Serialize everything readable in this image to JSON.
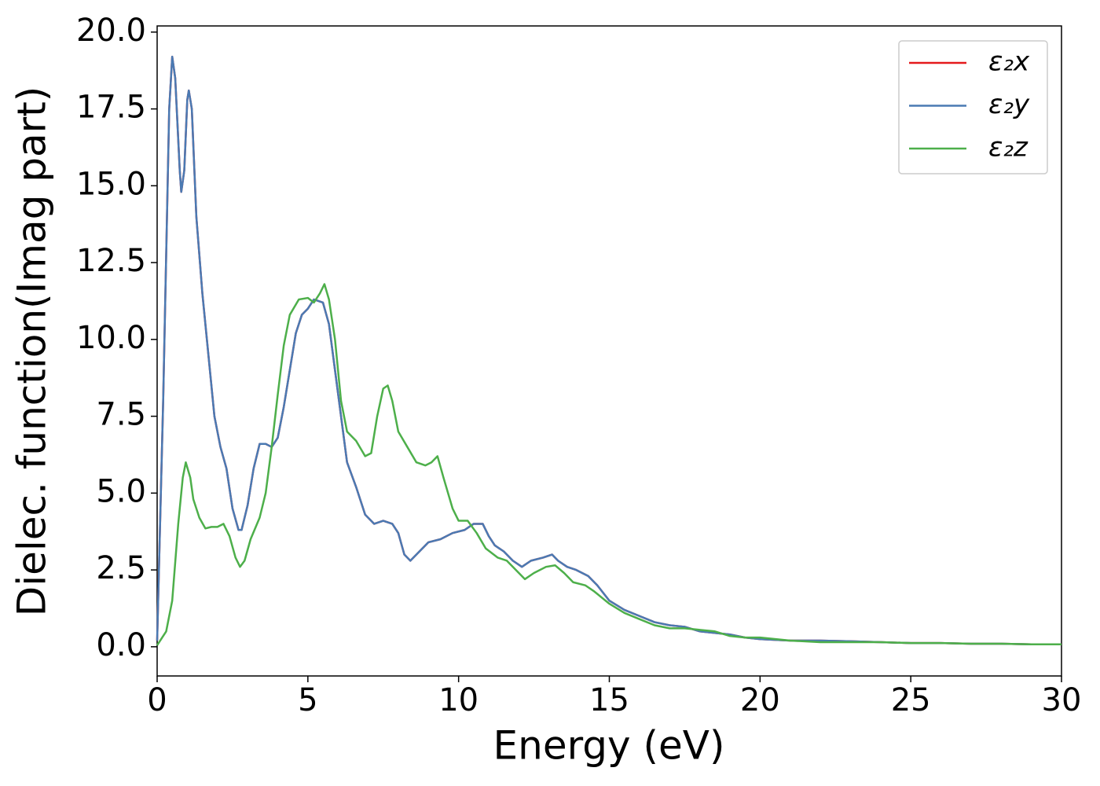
{
  "chart_data": {
    "type": "line",
    "xlabel": "Energy (eV)",
    "ylabel": "Dielec. function(Imag part)",
    "xlim": [
      0,
      30
    ],
    "xticks": [
      0,
      5,
      10,
      15,
      20,
      25,
      30
    ],
    "ylim": [
      -0.95,
      20.2
    ],
    "yticks": [
      {
        "value": 0,
        "label": "0.0"
      },
      2.5,
      {
        "value": 5,
        "label": "5.0"
      },
      7.5,
      {
        "value": 10,
        "label": "10.0"
      },
      12.5,
      {
        "value": 15,
        "label": "15.0"
      },
      17.5,
      {
        "value": 20,
        "label": "20.0"
      }
    ],
    "legend": "upper right",
    "series": [
      {
        "name": "ε₂x",
        "color": "#e41a1c",
        "x": [
          0,
          0.2,
          0.4,
          0.5,
          0.6,
          0.75,
          0.8,
          0.9,
          1.0,
          1.05,
          1.15,
          1.3,
          1.5,
          1.7,
          1.9,
          2.1,
          2.3,
          2.5,
          2.7,
          2.8,
          3.0,
          3.2,
          3.4,
          3.6,
          3.8,
          4.0,
          4.2,
          4.4,
          4.6,
          4.8,
          5.0,
          5.2,
          5.5,
          5.7,
          5.9,
          6.1,
          6.3,
          6.6,
          6.9,
          7.2,
          7.5,
          7.8,
          8.0,
          8.2,
          8.4,
          8.7,
          9.0,
          9.4,
          9.8,
          10.2,
          10.5,
          10.8,
          11.0,
          11.2,
          11.5,
          11.8,
          12.1,
          12.4,
          12.8,
          13.1,
          13.3,
          13.6,
          13.9,
          14.3,
          14.6,
          15.0,
          15.5,
          16.0,
          16.5,
          17.0,
          17.5,
          18.0,
          18.5,
          19.0,
          19.5,
          20,
          21,
          22,
          23,
          24,
          25,
          26,
          27,
          28,
          29,
          30
        ],
        "values": [
          0.2,
          8,
          17.5,
          19.2,
          18.5,
          15.5,
          14.8,
          15.5,
          17.8,
          18.1,
          17.5,
          14,
          11.5,
          9.5,
          7.5,
          6.5,
          5.8,
          4.5,
          3.8,
          3.8,
          4.6,
          5.8,
          6.6,
          6.6,
          6.5,
          6.8,
          7.8,
          9.0,
          10.2,
          10.8,
          11.0,
          11.3,
          11.2,
          10.5,
          9.0,
          7.5,
          6.0,
          5.2,
          4.3,
          4.0,
          4.1,
          4.0,
          3.7,
          3.0,
          2.8,
          3.1,
          3.4,
          3.5,
          3.7,
          3.8,
          4.0,
          4.0,
          3.6,
          3.3,
          3.1,
          2.8,
          2.6,
          2.8,
          2.9,
          3.0,
          2.8,
          2.6,
          2.5,
          2.3,
          2.0,
          1.5,
          1.2,
          1.0,
          0.8,
          0.7,
          0.65,
          0.5,
          0.45,
          0.4,
          0.3,
          0.25,
          0.2,
          0.2,
          0.18,
          0.15,
          0.12,
          0.12,
          0.1,
          0.1,
          0.08,
          0.08
        ]
      },
      {
        "name": "ε₂y",
        "color": "#4a7ab3",
        "x": [
          0,
          0.2,
          0.4,
          0.5,
          0.6,
          0.75,
          0.8,
          0.9,
          1.0,
          1.05,
          1.15,
          1.3,
          1.5,
          1.7,
          1.9,
          2.1,
          2.3,
          2.5,
          2.7,
          2.8,
          3.0,
          3.2,
          3.4,
          3.6,
          3.8,
          4.0,
          4.2,
          4.4,
          4.6,
          4.8,
          5.0,
          5.2,
          5.5,
          5.7,
          5.9,
          6.1,
          6.3,
          6.6,
          6.9,
          7.2,
          7.5,
          7.8,
          8.0,
          8.2,
          8.4,
          8.7,
          9.0,
          9.4,
          9.8,
          10.2,
          10.5,
          10.8,
          11.0,
          11.2,
          11.5,
          11.8,
          12.1,
          12.4,
          12.8,
          13.1,
          13.3,
          13.6,
          13.9,
          14.3,
          14.6,
          15.0,
          15.5,
          16.0,
          16.5,
          17.0,
          17.5,
          18.0,
          18.5,
          19.0,
          19.5,
          20,
          21,
          22,
          23,
          24,
          25,
          26,
          27,
          28,
          29,
          30
        ],
        "values": [
          0.2,
          8,
          17.5,
          19.2,
          18.5,
          15.5,
          14.8,
          15.5,
          17.8,
          18.1,
          17.5,
          14,
          11.5,
          9.5,
          7.5,
          6.5,
          5.8,
          4.5,
          3.8,
          3.8,
          4.6,
          5.8,
          6.6,
          6.6,
          6.5,
          6.8,
          7.8,
          9.0,
          10.2,
          10.8,
          11.0,
          11.3,
          11.2,
          10.5,
          9.0,
          7.5,
          6.0,
          5.2,
          4.3,
          4.0,
          4.1,
          4.0,
          3.7,
          3.0,
          2.8,
          3.1,
          3.4,
          3.5,
          3.7,
          3.8,
          4.0,
          4.0,
          3.6,
          3.3,
          3.1,
          2.8,
          2.6,
          2.8,
          2.9,
          3.0,
          2.8,
          2.6,
          2.5,
          2.3,
          2.0,
          1.5,
          1.2,
          1.0,
          0.8,
          0.7,
          0.65,
          0.5,
          0.45,
          0.4,
          0.3,
          0.25,
          0.2,
          0.2,
          0.18,
          0.15,
          0.12,
          0.12,
          0.1,
          0.1,
          0.08,
          0.08
        ]
      },
      {
        "name": "ε₂z",
        "color": "#4daf4a",
        "x": [
          0,
          0.3,
          0.5,
          0.7,
          0.85,
          0.95,
          1.1,
          1.2,
          1.4,
          1.6,
          1.8,
          2.0,
          2.2,
          2.4,
          2.6,
          2.75,
          2.9,
          3.1,
          3.4,
          3.6,
          3.8,
          4.0,
          4.2,
          4.4,
          4.7,
          5.0,
          5.2,
          5.4,
          5.55,
          5.7,
          5.9,
          6.1,
          6.3,
          6.6,
          6.9,
          7.1,
          7.3,
          7.5,
          7.65,
          7.8,
          8.0,
          8.3,
          8.6,
          8.9,
          9.1,
          9.3,
          9.5,
          9.8,
          10.0,
          10.3,
          10.6,
          10.9,
          11.3,
          11.6,
          11.9,
          12.2,
          12.5,
          12.9,
          13.2,
          13.5,
          13.8,
          14.2,
          14.5,
          15.0,
          15.5,
          16.0,
          16.5,
          17.0,
          17.5,
          18.0,
          18.5,
          19.0,
          19.5,
          20,
          21,
          22,
          23,
          24,
          25,
          26,
          27,
          28,
          29,
          30
        ],
        "values": [
          0.05,
          0.5,
          1.5,
          4,
          5.5,
          6.0,
          5.5,
          4.8,
          4.2,
          3.85,
          3.9,
          3.9,
          4.0,
          3.6,
          2.9,
          2.6,
          2.8,
          3.5,
          4.2,
          5.0,
          6.5,
          8.2,
          9.8,
          10.8,
          11.3,
          11.35,
          11.2,
          11.5,
          11.8,
          11.3,
          10.0,
          8.0,
          7.0,
          6.7,
          6.2,
          6.3,
          7.5,
          8.4,
          8.5,
          8.0,
          7.0,
          6.5,
          6.0,
          5.9,
          6.0,
          6.2,
          5.5,
          4.5,
          4.1,
          4.1,
          3.7,
          3.2,
          2.9,
          2.8,
          2.5,
          2.2,
          2.4,
          2.6,
          2.65,
          2.4,
          2.1,
          2.0,
          1.8,
          1.4,
          1.1,
          0.9,
          0.7,
          0.6,
          0.6,
          0.55,
          0.5,
          0.35,
          0.3,
          0.3,
          0.2,
          0.15,
          0.15,
          0.15,
          0.12,
          0.12,
          0.1,
          0.1,
          0.08,
          0.08
        ]
      }
    ]
  }
}
